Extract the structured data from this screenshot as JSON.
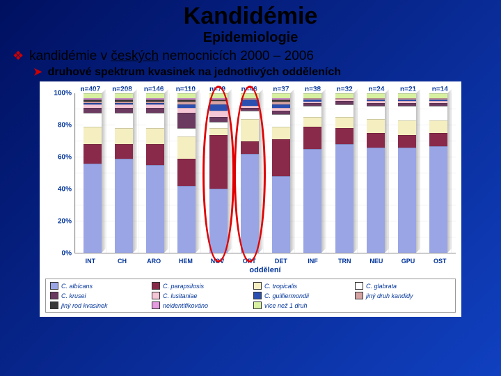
{
  "title": {
    "text": "Kandidémie",
    "fontsize": 34
  },
  "subtitle": {
    "text": "Epidemiologie",
    "fontsize": 20
  },
  "bullet1": {
    "text": "kandidémie v českých nemocnicích 2000 – 2006",
    "fontsize": 19,
    "underline_word": "českých"
  },
  "bullet2": {
    "text": "druhové spektrum kvasinek na jednotlivých odděleních",
    "fontsize": 16
  },
  "chart": {
    "type": "stacked-bar-100",
    "background_color": "#ffffff",
    "text_color": "#003399",
    "n_values": [
      "n=407",
      "n=208",
      "n=146",
      "n=110",
      "n=79",
      "n=46",
      "n=37",
      "n=38",
      "n=32",
      "n=24",
      "n=21",
      "n=14"
    ],
    "categories": [
      "INT",
      "CH",
      "ARO",
      "HEM",
      "NOV",
      "ORT",
      "DET",
      "INF",
      "TRN",
      "NEU",
      "GPU",
      "OST"
    ],
    "x_title": "oddělení",
    "ylim": [
      0,
      100
    ],
    "ytick_step": 20,
    "yticks": [
      "0%",
      "20%",
      "40%",
      "60%",
      "80%",
      "100%"
    ],
    "series": [
      {
        "key": "c_albicans",
        "label": "C. albícans",
        "color": "#9aa5e6"
      },
      {
        "key": "c_parapsilosis",
        "label": "C. parapsilosis",
        "color": "#8a2a4a"
      },
      {
        "key": "c_tropicalis",
        "label": "C. tropicalis",
        "color": "#f4eec0"
      },
      {
        "key": "c_glabrata",
        "label": "C. glabrata",
        "color": "#ffffff"
      },
      {
        "key": "c_krusei",
        "label": "C. krusei",
        "color": "#6b3a60"
      },
      {
        "key": "c_lusitaniae",
        "label": "C. lusitaniae",
        "color": "#f5c6d6"
      },
      {
        "key": "c_guilliermondii",
        "label": "C. guilliermondii",
        "color": "#2a4fb0"
      },
      {
        "key": "jiny_druh",
        "label": "jiný druh kandidy",
        "color": "#d6a3a3"
      },
      {
        "key": "jiny_rod",
        "label": "jiný rod kvasinek",
        "color": "#3a3a3a"
      },
      {
        "key": "neident",
        "label": "neidentifikováno",
        "color": "#e69ae0"
      },
      {
        "key": "vice_nez_1",
        "label": "více než 1 druh",
        "color": "#d6f0a0"
      }
    ],
    "data": [
      {
        "c_albicans": 56,
        "c_parapsilosis": 12,
        "c_tropicalis": 11,
        "c_glabrata": 9,
        "c_krusei": 3,
        "c_lusitaniae": 2,
        "c_guilliermondii": 1,
        "jiny_druh": 1,
        "jiny_rod": 1,
        "neident": 1,
        "vice_nez_1": 3
      },
      {
        "c_albicans": 59,
        "c_parapsilosis": 9,
        "c_tropicalis": 10,
        "c_glabrata": 10,
        "c_krusei": 3,
        "c_lusitaniae": 2,
        "c_guilliermondii": 1,
        "jiny_druh": 1,
        "jiny_rod": 1,
        "neident": 1,
        "vice_nez_1": 3
      },
      {
        "c_albicans": 55,
        "c_parapsilosis": 13,
        "c_tropicalis": 10,
        "c_glabrata": 10,
        "c_krusei": 3,
        "c_lusitaniae": 2,
        "c_guilliermondii": 1,
        "jiny_druh": 1,
        "jiny_rod": 1,
        "neident": 1,
        "vice_nez_1": 3
      },
      {
        "c_albicans": 42,
        "c_parapsilosis": 17,
        "c_tropicalis": 14,
        "c_glabrata": 5,
        "c_krusei": 10,
        "c_lusitaniae": 3,
        "c_guilliermondii": 2,
        "jiny_druh": 2,
        "jiny_rod": 1,
        "neident": 1,
        "vice_nez_1": 3
      },
      {
        "c_albicans": 40,
        "c_parapsilosis": 34,
        "c_tropicalis": 4,
        "c_glabrata": 4,
        "c_krusei": 3,
        "c_lusitaniae": 4,
        "c_guilliermondii": 4,
        "jiny_druh": 2,
        "jiny_rod": 1,
        "neident": 1,
        "vice_nez_1": 3
      },
      {
        "c_albicans": 62,
        "c_parapsilosis": 8,
        "c_tropicalis": 14,
        "c_glabrata": 5,
        "c_krusei": 2,
        "c_lusitaniae": 1,
        "c_guilliermondii": 4,
        "jiny_druh": 1,
        "jiny_rod": 0,
        "neident": 0,
        "vice_nez_1": 3
      },
      {
        "c_albicans": 48,
        "c_parapsilosis": 23,
        "c_tropicalis": 8,
        "c_glabrata": 8,
        "c_krusei": 2,
        "c_lusitaniae": 2,
        "c_guilliermondii": 2,
        "jiny_druh": 2,
        "jiny_rod": 1,
        "neident": 1,
        "vice_nez_1": 3
      },
      {
        "c_albicans": 65,
        "c_parapsilosis": 14,
        "c_tropicalis": 6,
        "c_glabrata": 7,
        "c_krusei": 2,
        "c_lusitaniae": 1,
        "c_guilliermondii": 1,
        "jiny_druh": 1,
        "jiny_rod": 0,
        "neident": 0,
        "vice_nez_1": 3
      },
      {
        "c_albicans": 68,
        "c_parapsilosis": 10,
        "c_tropicalis": 7,
        "c_glabrata": 8,
        "c_krusei": 2,
        "c_lusitaniae": 1,
        "c_guilliermondii": 0,
        "jiny_druh": 1,
        "jiny_rod": 0,
        "neident": 0,
        "vice_nez_1": 3
      },
      {
        "c_albicans": 66,
        "c_parapsilosis": 9,
        "c_tropicalis": 9,
        "c_glabrata": 8,
        "c_krusei": 2,
        "c_lusitaniae": 1,
        "c_guilliermondii": 1,
        "jiny_druh": 1,
        "jiny_rod": 0,
        "neident": 0,
        "vice_nez_1": 3
      },
      {
        "c_albicans": 66,
        "c_parapsilosis": 8,
        "c_tropicalis": 9,
        "c_glabrata": 9,
        "c_krusei": 2,
        "c_lusitaniae": 1,
        "c_guilliermondii": 1,
        "jiny_druh": 1,
        "jiny_rod": 0,
        "neident": 0,
        "vice_nez_1": 3
      },
      {
        "c_albicans": 67,
        "c_parapsilosis": 8,
        "c_tropicalis": 8,
        "c_glabrata": 9,
        "c_krusei": 2,
        "c_lusitaniae": 1,
        "c_guilliermondii": 1,
        "jiny_druh": 1,
        "jiny_rod": 0,
        "neident": 0,
        "vice_nez_1": 3
      }
    ],
    "highlight_rings": [
      {
        "index": 4,
        "color": "#e00000"
      },
      {
        "index": 5,
        "color": "#e00000"
      }
    ]
  }
}
